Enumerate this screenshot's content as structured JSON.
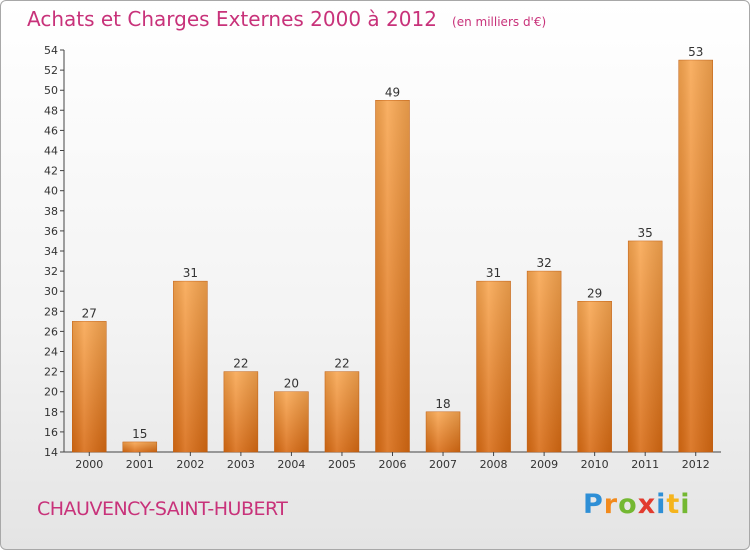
{
  "chart_data": {
    "type": "bar",
    "title": "Achats et Charges Externes 2000 à 2012",
    "unit": "(en milliers d'€)",
    "categories": [
      "2000",
      "2001",
      "2002",
      "2003",
      "2004",
      "2005",
      "2006",
      "2007",
      "2008",
      "2009",
      "2010",
      "2011",
      "2012"
    ],
    "values": [
      27,
      15,
      31,
      22,
      20,
      22,
      49,
      18,
      31,
      32,
      29,
      35,
      53
    ],
    "ylim": [
      14,
      54
    ],
    "yticks": [
      14,
      16,
      18,
      20,
      22,
      24,
      26,
      28,
      30,
      32,
      34,
      36,
      38,
      40,
      42,
      44,
      46,
      48,
      50,
      52,
      54
    ],
    "grid": false,
    "bar_color": "#f0922e",
    "title_color": "#c8327a"
  },
  "footer": {
    "commune": "CHAUVENCY-SAINT-HUBERT",
    "brand": [
      "P",
      "r",
      "o",
      "x",
      "i",
      "t",
      "i"
    ],
    "brand_colors": [
      "#2e8fd6",
      "#f28a1c",
      "#74b832",
      "#e23b2e",
      "#2e8fd6",
      "#f5b41c",
      "#74b832"
    ]
  }
}
